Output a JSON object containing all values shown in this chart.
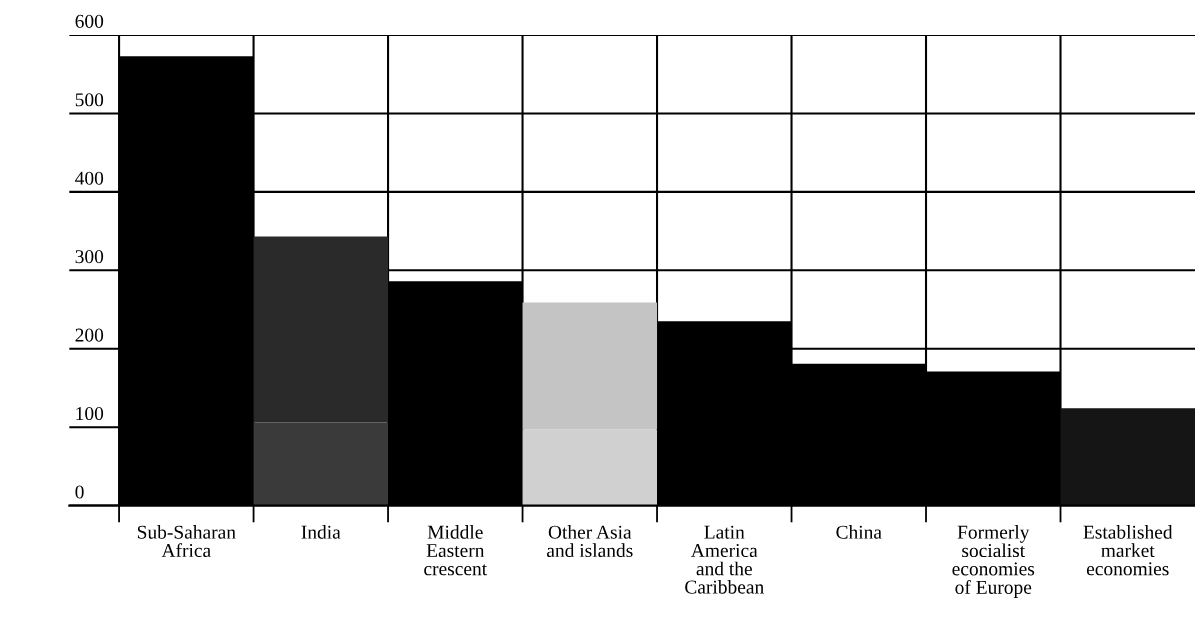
{
  "chart_data": {
    "type": "bar",
    "stacked": true,
    "categories": [
      "Sub-Saharan\nAfrica",
      "India",
      "Middle\nEastern\ncrescent",
      "Other Asia\nand islands",
      "Latin\nAmerica\nand the\nCaribbean",
      "China",
      "Formerly\nsocialist\neconomies\nof Europe",
      "Established\nmarket\neconomies"
    ],
    "series": [
      {
        "values": [
          573,
          106,
          286,
          97,
          235,
          181,
          171,
          124
        ],
        "colors": [
          "#000000",
          "#3a3a3a",
          "#000000",
          "#d0d0d0",
          "#000000",
          "#000000",
          "#000000",
          "#151515"
        ]
      },
      {
        "values": [
          null,
          237,
          null,
          162,
          null,
          null,
          null,
          null
        ],
        "colors": [
          null,
          "#2a2a2a",
          null,
          "#c4c4c4",
          null,
          null,
          null,
          null
        ]
      }
    ],
    "ylim": [
      0,
      600
    ],
    "yticks": [
      0,
      100,
      200,
      300,
      400,
      500,
      600
    ],
    "grid": true
  }
}
